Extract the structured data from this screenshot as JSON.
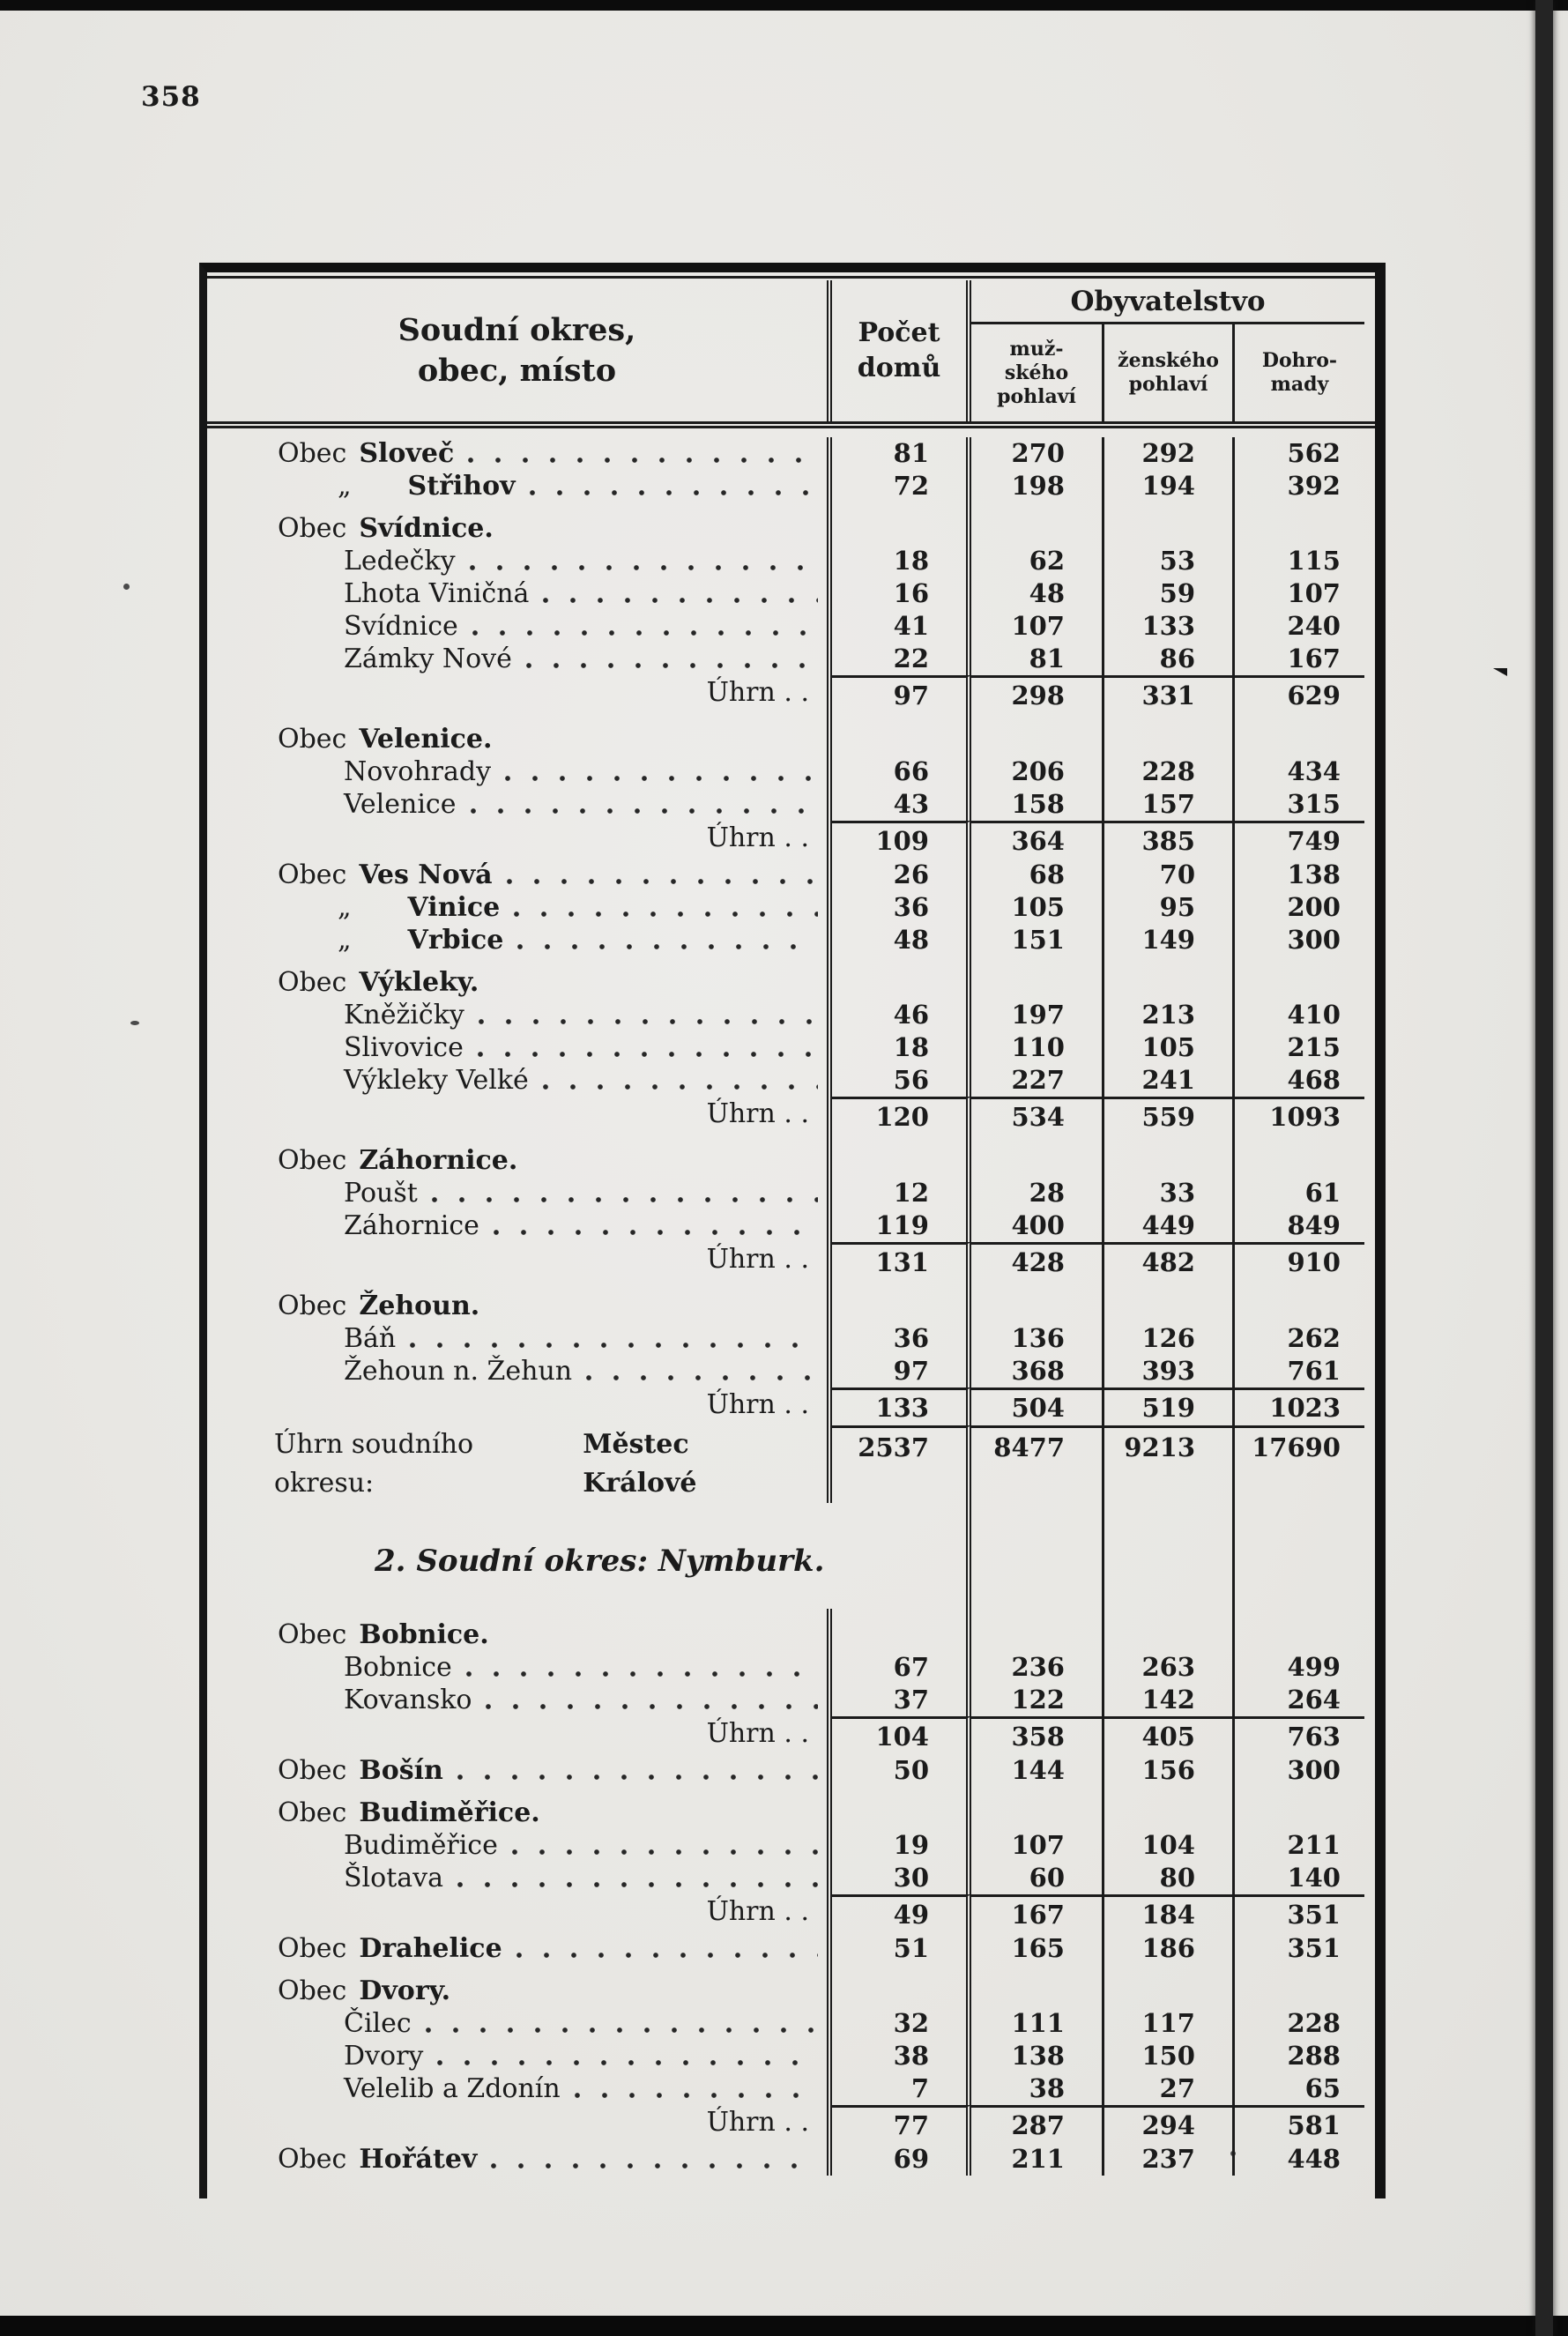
{
  "page": {
    "number": "358"
  },
  "table": {
    "header": {
      "col_place": "Soudní okres,\nobec, místo",
      "col_houses": "Počet\ndomů",
      "group_population": "Obyvatelstvo",
      "col_male": "muž-\nského\npohlaví",
      "col_female": "ženského\npohlaví",
      "col_total": "Dohro-\nmady"
    },
    "uhrn_label": "Úhrn . .",
    "rows": [
      {
        "type": "obec",
        "prefix": "Obec",
        "name": "Sloveč",
        "values": [
          "81",
          "270",
          "292",
          "562"
        ]
      },
      {
        "type": "ditto",
        "prefix": "„",
        "name": "Střihov",
        "values": [
          "72",
          "198",
          "194",
          "392"
        ]
      },
      {
        "type": "group",
        "prefix": "Obec",
        "name": "Svídnice."
      },
      {
        "type": "sub",
        "name": "Ledečky",
        "values": [
          "18",
          "62",
          "53",
          "115"
        ]
      },
      {
        "type": "sub",
        "name": "Lhota Viničná",
        "values": [
          "16",
          "48",
          "59",
          "107"
        ]
      },
      {
        "type": "sub",
        "name": "Svídnice",
        "values": [
          "41",
          "107",
          "133",
          "240"
        ]
      },
      {
        "type": "sub",
        "name": "Zámky Nové",
        "values": [
          "22",
          "81",
          "86",
          "167"
        ]
      },
      {
        "type": "uhrn",
        "values": [
          "97",
          "298",
          "331",
          "629"
        ]
      },
      {
        "type": "group",
        "prefix": "Obec",
        "name": "Velenice."
      },
      {
        "type": "sub",
        "name": "Novohrady",
        "values": [
          "66",
          "206",
          "228",
          "434"
        ]
      },
      {
        "type": "sub",
        "name": "Velenice",
        "values": [
          "43",
          "158",
          "157",
          "315"
        ]
      },
      {
        "type": "uhrn",
        "values": [
          "109",
          "364",
          "385",
          "749"
        ]
      },
      {
        "type": "obec",
        "prefix": "Obec",
        "name": "Ves Nová",
        "values": [
          "26",
          "68",
          "70",
          "138"
        ]
      },
      {
        "type": "ditto",
        "prefix": "„",
        "name": "Vinice",
        "values": [
          "36",
          "105",
          "95",
          "200"
        ]
      },
      {
        "type": "ditto",
        "prefix": "„",
        "name": "Vrbice",
        "values": [
          "48",
          "151",
          "149",
          "300"
        ]
      },
      {
        "type": "group",
        "prefix": "Obec",
        "name": "Výkleky."
      },
      {
        "type": "sub",
        "name": "Kněžičky",
        "values": [
          "46",
          "197",
          "213",
          "410"
        ]
      },
      {
        "type": "sub",
        "name": "Slivovice",
        "values": [
          "18",
          "110",
          "105",
          "215"
        ]
      },
      {
        "type": "sub",
        "name": "Výkleky Velké",
        "values": [
          "56",
          "227",
          "241",
          "468"
        ]
      },
      {
        "type": "uhrn",
        "values": [
          "120",
          "534",
          "559",
          "1093"
        ]
      },
      {
        "type": "group",
        "prefix": "Obec",
        "name": "Záhornice."
      },
      {
        "type": "sub",
        "name": "Poušt",
        "values": [
          "12",
          "28",
          "33",
          "61"
        ]
      },
      {
        "type": "sub",
        "name": "Záhornice",
        "values": [
          "119",
          "400",
          "449",
          "849"
        ]
      },
      {
        "type": "uhrn",
        "values": [
          "131",
          "428",
          "482",
          "910"
        ]
      },
      {
        "type": "group",
        "prefix": "Obec",
        "name": "Žehoun."
      },
      {
        "type": "sub",
        "name": "Báň",
        "values": [
          "36",
          "136",
          "126",
          "262"
        ]
      },
      {
        "type": "sub",
        "name": "Žehoun n. Žehun",
        "values": [
          "97",
          "368",
          "393",
          "761"
        ]
      },
      {
        "type": "uhrn",
        "values": [
          "133",
          "504",
          "519",
          "1023"
        ]
      },
      {
        "type": "total",
        "prefix": "Úhrn soudního okresu:",
        "name": "Městec Králové",
        "values": [
          "2537",
          "8477",
          "9213",
          "17690"
        ]
      },
      {
        "type": "section",
        "label": "2. Soudní okres: Nymburk."
      },
      {
        "type": "group",
        "prefix": "Obec",
        "name": "Bobnice."
      },
      {
        "type": "sub",
        "name": "Bobnice",
        "values": [
          "67",
          "236",
          "263",
          "499"
        ]
      },
      {
        "type": "sub",
        "name": "Kovansko",
        "values": [
          "37",
          "122",
          "142",
          "264"
        ]
      },
      {
        "type": "uhrn",
        "values": [
          "104",
          "358",
          "405",
          "763"
        ]
      },
      {
        "type": "obec",
        "prefix": "Obec",
        "name": "Bošín",
        "values": [
          "50",
          "144",
          "156",
          "300"
        ]
      },
      {
        "type": "group",
        "prefix": "Obec",
        "name": "Budiměřice."
      },
      {
        "type": "sub",
        "name": "Budiměřice",
        "values": [
          "19",
          "107",
          "104",
          "211"
        ]
      },
      {
        "type": "sub",
        "name": "Šlotava",
        "values": [
          "30",
          "60",
          "80",
          "140"
        ]
      },
      {
        "type": "uhrn",
        "values": [
          "49",
          "167",
          "184",
          "351"
        ]
      },
      {
        "type": "obec",
        "prefix": "Obec",
        "name": "Drahelice",
        "values": [
          "51",
          "165",
          "186",
          "351"
        ]
      },
      {
        "type": "group",
        "prefix": "Obec",
        "name": "Dvory."
      },
      {
        "type": "sub",
        "name": "Čilec",
        "values": [
          "32",
          "111",
          "117",
          "228"
        ]
      },
      {
        "type": "sub",
        "name": "Dvory",
        "values": [
          "38",
          "138",
          "150",
          "288"
        ]
      },
      {
        "type": "sub",
        "name": "Velelib a Zdonín",
        "values": [
          "7",
          "38",
          "27",
          "65"
        ]
      },
      {
        "type": "uhrn",
        "values": [
          "77",
          "287",
          "294",
          "581"
        ]
      },
      {
        "type": "obec",
        "prefix": "Obec",
        "name": "Hořátev",
        "values": [
          "69",
          "211",
          "237",
          "448"
        ]
      }
    ]
  }
}
